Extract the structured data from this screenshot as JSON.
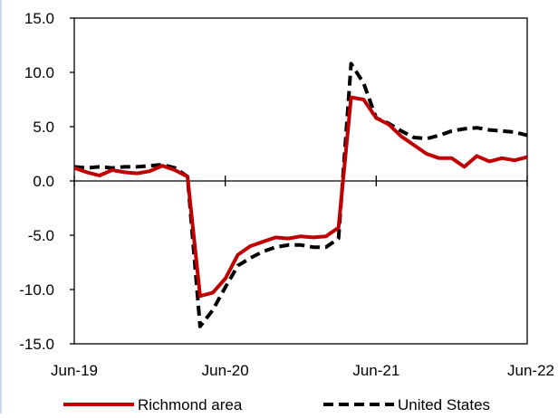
{
  "chart_data": {
    "type": "line",
    "title": "",
    "xlabel": "",
    "ylabel": "",
    "ylim": [
      -15,
      15
    ],
    "yticks": [
      "15.0",
      "10.0",
      "5.0",
      "0.0",
      "-5.0",
      "-10.0",
      "-15.0"
    ],
    "ytick_values": [
      15,
      10,
      5,
      0,
      -5,
      -10,
      -15
    ],
    "xtick_labels": [
      "Jun-19",
      "Jun-20",
      "Jun-21",
      "Jun-22"
    ],
    "xtick_months": [
      0,
      12,
      24,
      36
    ],
    "x_months": [
      0,
      1,
      2,
      3,
      4,
      5,
      6,
      7,
      8,
      9,
      10,
      11,
      12,
      13,
      14,
      15,
      16,
      17,
      18,
      19,
      20,
      21,
      22,
      23,
      24,
      25,
      26,
      27,
      28,
      29,
      30,
      31,
      32,
      33,
      34,
      35,
      36
    ],
    "legend_position": "bottom",
    "grid": false,
    "series": [
      {
        "name": "Richmond area",
        "color": "#c00000",
        "style": "solid",
        "values": [
          1.2,
          0.8,
          0.5,
          1.0,
          0.8,
          0.7,
          0.9,
          1.4,
          1.0,
          0.4,
          -10.6,
          -10.3,
          -9.0,
          -6.8,
          -6.0,
          -5.6,
          -5.2,
          -5.3,
          -5.1,
          -5.2,
          -5.1,
          -4.3,
          7.7,
          7.5,
          5.8,
          5.2,
          4.1,
          3.3,
          2.5,
          2.1,
          2.1,
          1.3,
          2.3,
          1.8,
          2.1,
          1.9,
          2.2
        ]
      },
      {
        "name": "United States",
        "color": "#000000",
        "style": "dashed",
        "values": [
          1.3,
          1.2,
          1.3,
          1.2,
          1.3,
          1.3,
          1.4,
          1.5,
          1.2,
          0.4,
          -13.4,
          -11.9,
          -9.8,
          -7.8,
          -7.1,
          -6.5,
          -6.1,
          -5.9,
          -5.9,
          -6.1,
          -6.1,
          -5.3,
          10.8,
          9.0,
          5.8,
          5.3,
          4.6,
          4.0,
          3.9,
          4.2,
          4.6,
          4.8,
          4.9,
          4.7,
          4.6,
          4.5,
          4.2
        ]
      }
    ]
  }
}
